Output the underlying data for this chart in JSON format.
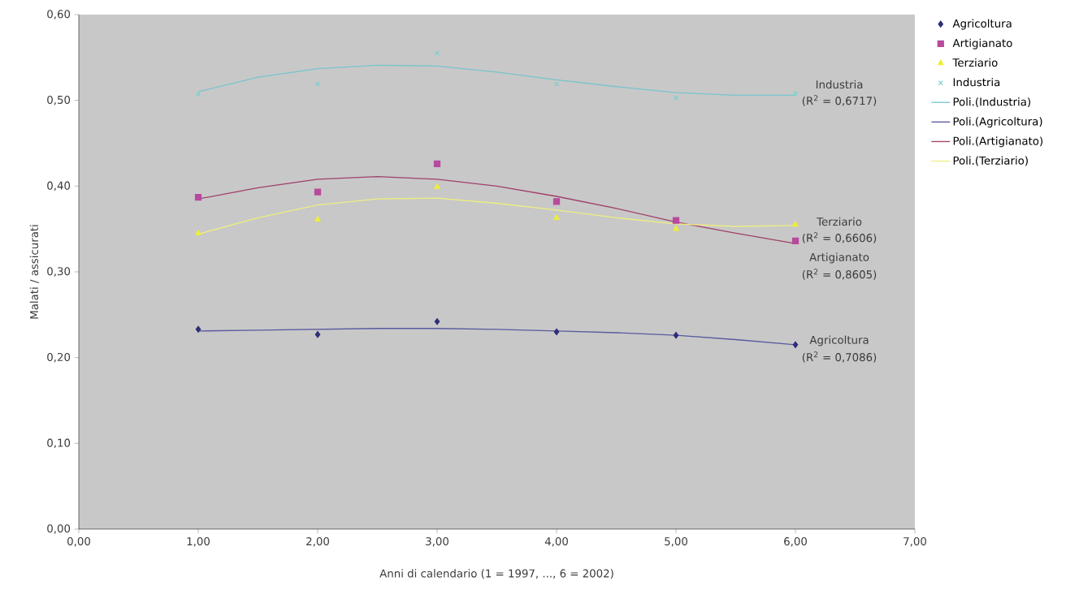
{
  "chart_data": {
    "type": "scatter",
    "xlabel": "Anni di calendario (1 = 1997, ..., 6 = 2002)",
    "ylabel": "Malati / assicurati",
    "xlim": [
      0,
      7
    ],
    "ylim": [
      0,
      0.6
    ],
    "xticks": [
      {
        "value": 0,
        "label": "0,00"
      },
      {
        "value": 1,
        "label": "1,00"
      },
      {
        "value": 2,
        "label": "2,00"
      },
      {
        "value": 3,
        "label": "3,00"
      },
      {
        "value": 4,
        "label": "4,00"
      },
      {
        "value": 5,
        "label": "5,00"
      },
      {
        "value": 6,
        "label": "6,00"
      },
      {
        "value": 7,
        "label": "7,00"
      }
    ],
    "yticks": [
      {
        "value": 0,
        "label": "0,00"
      },
      {
        "value": 0.1,
        "label": "0,10"
      },
      {
        "value": 0.2,
        "label": "0,20"
      },
      {
        "value": 0.3,
        "label": "0,30"
      },
      {
        "value": 0.4,
        "label": "0,40"
      },
      {
        "value": 0.5,
        "label": "0,50"
      },
      {
        "value": 0.6,
        "label": "0,60"
      }
    ],
    "grid": false,
    "legend": "top right",
    "series": [
      {
        "name": "Agricoltura",
        "marker": "diamond",
        "color": "#2e2e7a",
        "x": [
          1,
          2,
          3,
          4,
          5,
          6
        ],
        "values": [
          0.233,
          0.227,
          0.242,
          0.23,
          0.226,
          0.215
        ]
      },
      {
        "name": "Artigianato",
        "marker": "square",
        "color": "#b84a9e",
        "x": [
          1,
          2,
          3,
          4,
          5,
          6
        ],
        "values": [
          0.387,
          0.393,
          0.426,
          0.382,
          0.36,
          0.336
        ]
      },
      {
        "name": "Terziario",
        "marker": "triangle",
        "color": "#eeee3a",
        "x": [
          1,
          2,
          3,
          4,
          5,
          6
        ],
        "values": [
          0.345,
          0.361,
          0.399,
          0.363,
          0.35,
          0.355
        ]
      },
      {
        "name": "Industria",
        "marker": "cross",
        "color": "#80d0d0",
        "x": [
          1,
          2,
          3,
          4,
          5,
          6
        ],
        "values": [
          0.507,
          0.519,
          0.555,
          0.519,
          0.503,
          0.508
        ]
      },
      {
        "name": "Poli.(Industria)",
        "type": "line",
        "marker": "none",
        "color": "#78c4cc",
        "x": [
          1,
          1.5,
          2,
          2.5,
          3,
          3.5,
          4,
          4.5,
          5,
          5.5,
          6
        ],
        "values": [
          0.51,
          0.527,
          0.537,
          0.541,
          0.54,
          0.533,
          0.524,
          0.516,
          0.509,
          0.506,
          0.506
        ]
      },
      {
        "name": "Poli.(Agricoltura)",
        "type": "line",
        "marker": "none",
        "color": "#5a5aa0",
        "x": [
          1,
          1.5,
          2,
          2.5,
          3,
          3.5,
          4,
          4.5,
          5,
          5.5,
          6
        ],
        "values": [
          0.231,
          0.232,
          0.233,
          0.234,
          0.234,
          0.233,
          0.231,
          0.229,
          0.226,
          0.221,
          0.215
        ]
      },
      {
        "name": "Poli.(Artigianato)",
        "type": "line",
        "marker": "none",
        "color": "#a0406a",
        "x": [
          1,
          1.5,
          2,
          2.5,
          3,
          3.5,
          4,
          4.5,
          5,
          5.5,
          6
        ],
        "values": [
          0.385,
          0.398,
          0.408,
          0.411,
          0.408,
          0.4,
          0.388,
          0.374,
          0.358,
          0.345,
          0.333
        ]
      },
      {
        "name": "Poli.(Terziario)",
        "type": "line",
        "marker": "none",
        "color": "#eeee80",
        "x": [
          1,
          1.5,
          2,
          2.5,
          3,
          3.5,
          4,
          4.5,
          5,
          5.5,
          6
        ],
        "values": [
          0.344,
          0.363,
          0.378,
          0.385,
          0.386,
          0.38,
          0.372,
          0.363,
          0.356,
          0.353,
          0.354
        ]
      }
    ],
    "annotations": [
      "Industria",
      "(R$^{2}$ = 0,6717)",
      "Terziario",
      "(R$^{2}$ = 0,6606)",
      "Artigianato",
      "(R$^{2}$ = 0,8605)",
      "Agricoltura",
      "(R$^{2}$ = 0,7086)"
    ]
  }
}
